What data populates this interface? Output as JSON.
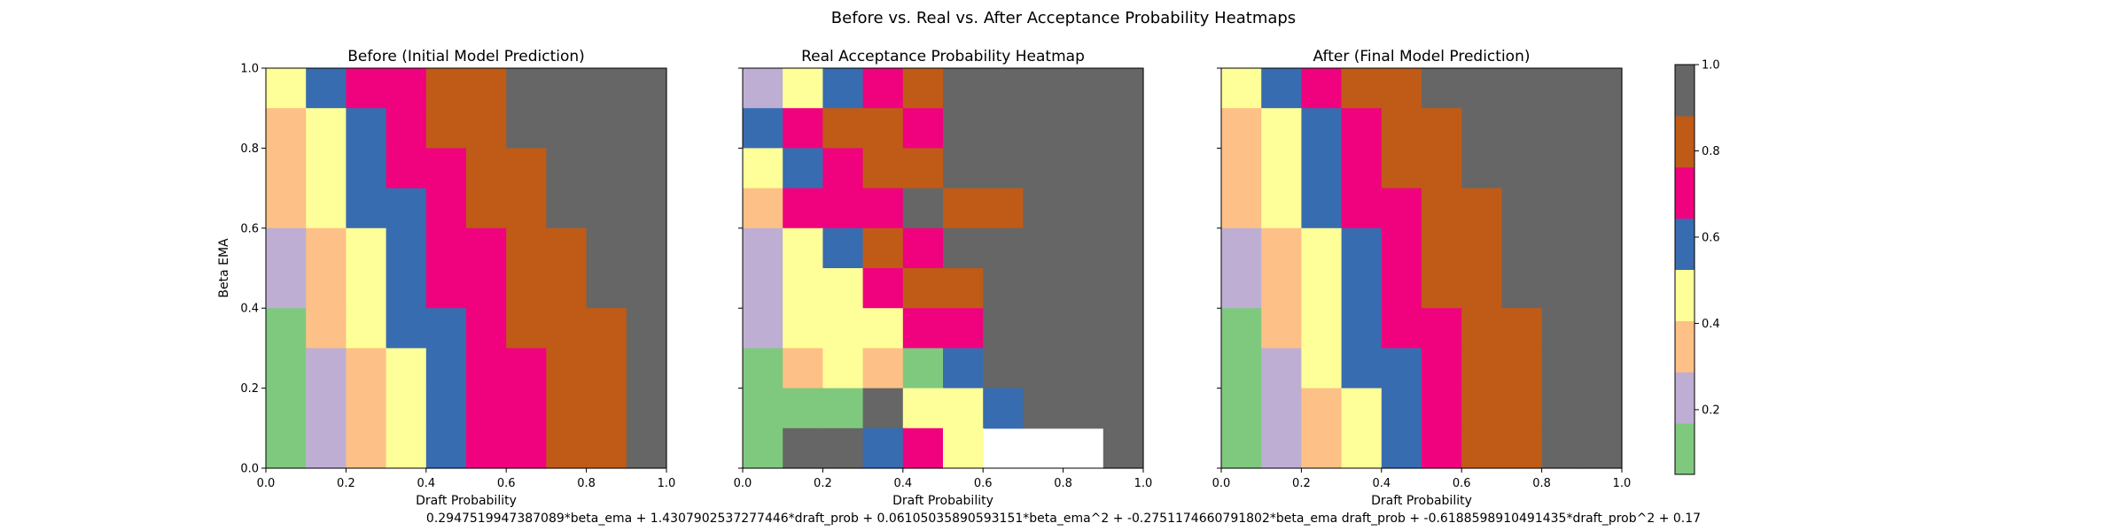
{
  "suptitle": "Before vs. Real vs. After Acceptance Probability Heatmaps",
  "equation": "0.2947519947387089*beta_ema + 1.4307902537277446*draft_prob + 0.06105035890593151*beta_ema^2 + -0.2751174660791802*beta_ema draft_prob + -0.6188598910491435*draft_prob^2 + 0.17",
  "colorbar": {
    "ticks": [
      "0.2",
      "0.4",
      "0.6",
      "0.8",
      "1.0"
    ],
    "tick_values": [
      0.2,
      0.4,
      0.6,
      0.8,
      1.0
    ],
    "vmin": 0.05,
    "vmax": 1.0,
    "levels": 8,
    "colors": [
      "#7fc97f",
      "#beaed4",
      "#fdc086",
      "#ffff99",
      "#386cb0",
      "#f0027f",
      "#bf5b17",
      "#666666"
    ]
  },
  "chart_data": [
    {
      "type": "heatmap",
      "title": "Before (Initial Model Prediction)",
      "xlabel": "Draft Probability",
      "ylabel": "Beta EMA",
      "xlim": [
        0,
        1
      ],
      "ylim": [
        0,
        1
      ],
      "xticks": [
        "0.0",
        "0.2",
        "0.4",
        "0.6",
        "0.8",
        "1.0"
      ],
      "yticks": [
        "0.0",
        "0.2",
        "0.4",
        "0.6",
        "0.8",
        "1.0"
      ],
      "show_yticklabels": true,
      "grid": false,
      "row_order": "top-to-bottom (beta_ema 1.0 to 0.0)",
      "levels": [
        [
          3,
          4,
          5,
          5,
          6,
          6,
          7,
          7,
          7,
          7
        ],
        [
          2,
          3,
          4,
          5,
          6,
          6,
          7,
          7,
          7,
          7
        ],
        [
          2,
          3,
          4,
          5,
          5,
          6,
          6,
          7,
          7,
          7
        ],
        [
          2,
          3,
          4,
          4,
          5,
          6,
          6,
          7,
          7,
          7
        ],
        [
          1,
          2,
          3,
          4,
          5,
          5,
          6,
          6,
          7,
          7
        ],
        [
          1,
          2,
          3,
          4,
          5,
          5,
          6,
          6,
          7,
          7
        ],
        [
          0,
          2,
          3,
          4,
          4,
          5,
          6,
          6,
          6,
          7
        ],
        [
          0,
          1,
          2,
          3,
          4,
          5,
          5,
          6,
          6,
          7
        ],
        [
          0,
          1,
          2,
          3,
          4,
          5,
          5,
          6,
          6,
          7
        ],
        [
          0,
          1,
          2,
          3,
          4,
          5,
          5,
          6,
          6,
          7
        ]
      ]
    },
    {
      "type": "heatmap",
      "title": "Real Acceptance Probability Heatmap",
      "xlabel": "Draft Probability",
      "ylabel": "",
      "xlim": [
        0,
        1
      ],
      "ylim": [
        0,
        1
      ],
      "xticks": [
        "0.0",
        "0.2",
        "0.4",
        "0.6",
        "0.8",
        "1.0"
      ],
      "yticks": [
        "0.0",
        "0.2",
        "0.4",
        "0.6",
        "0.8",
        "1.0"
      ],
      "show_yticklabels": false,
      "grid": false,
      "row_order": "top-to-bottom (beta_ema 1.0 to 0.0)",
      "levels": [
        [
          1,
          3,
          4,
          5,
          6,
          7,
          7,
          7,
          7,
          7
        ],
        [
          4,
          5,
          6,
          6,
          5,
          7,
          7,
          7,
          7,
          7
        ],
        [
          3,
          4,
          5,
          6,
          6,
          7,
          7,
          7,
          7,
          7
        ],
        [
          2,
          5,
          5,
          5,
          7,
          6,
          6,
          7,
          7,
          7
        ],
        [
          1,
          3,
          4,
          6,
          5,
          7,
          7,
          7,
          7,
          7
        ],
        [
          1,
          3,
          3,
          5,
          6,
          6,
          7,
          7,
          7,
          7
        ],
        [
          1,
          3,
          3,
          3,
          5,
          5,
          7,
          7,
          7,
          7
        ],
        [
          0,
          2,
          3,
          2,
          0,
          4,
          7,
          7,
          7,
          7
        ],
        [
          0,
          0,
          0,
          7,
          3,
          3,
          4,
          7,
          7,
          7
        ],
        [
          0,
          7,
          7,
          4,
          5,
          3,
          null,
          null,
          null,
          7
        ]
      ]
    },
    {
      "type": "heatmap",
      "title": "After (Final Model Prediction)",
      "xlabel": "Draft Probability",
      "ylabel": "",
      "xlim": [
        0,
        1
      ],
      "ylim": [
        0,
        1
      ],
      "xticks": [
        "0.0",
        "0.2",
        "0.4",
        "0.6",
        "0.8",
        "1.0"
      ],
      "yticks": [
        "0.0",
        "0.2",
        "0.4",
        "0.6",
        "0.8",
        "1.0"
      ],
      "show_yticklabels": false,
      "grid": false,
      "row_order": "top-to-bottom (beta_ema 1.0 to 0.0)",
      "levels": [
        [
          3,
          4,
          5,
          6,
          6,
          7,
          7,
          7,
          7,
          7
        ],
        [
          2,
          3,
          4,
          5,
          6,
          6,
          7,
          7,
          7,
          7
        ],
        [
          2,
          3,
          4,
          5,
          6,
          6,
          7,
          7,
          7,
          7
        ],
        [
          2,
          3,
          4,
          5,
          5,
          6,
          6,
          7,
          7,
          7
        ],
        [
          1,
          2,
          3,
          4,
          5,
          6,
          6,
          7,
          7,
          7
        ],
        [
          1,
          2,
          3,
          4,
          5,
          6,
          6,
          7,
          7,
          7
        ],
        [
          0,
          2,
          3,
          4,
          5,
          5,
          6,
          6,
          7,
          7
        ],
        [
          0,
          1,
          3,
          4,
          4,
          5,
          6,
          6,
          7,
          7
        ],
        [
          0,
          1,
          2,
          3,
          4,
          5,
          6,
          6,
          7,
          7
        ],
        [
          0,
          1,
          2,
          3,
          4,
          5,
          6,
          6,
          7,
          7
        ]
      ]
    }
  ]
}
